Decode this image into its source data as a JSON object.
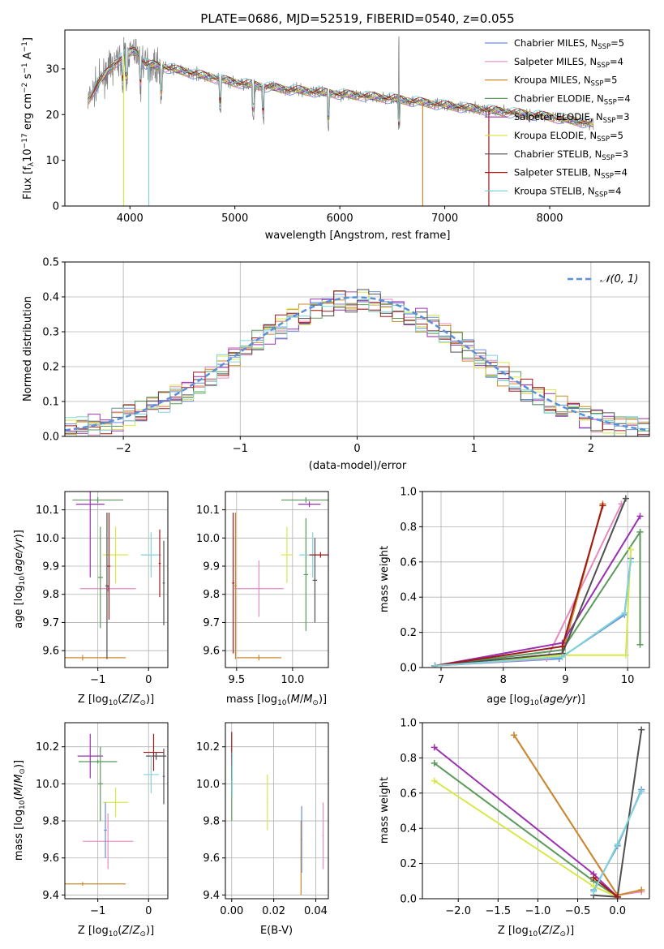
{
  "figure": {
    "title": "PLATE=0686, MJD=52519, FIBERID=0540, z=0.055"
  },
  "colors": {
    "Chabrier MILES": "#6a8ed6",
    "Salpeter MILES": "#e68ac0",
    "Kroupa MILES": "#c88a2a",
    "Chabrier ELODIE": "#5a9a5a",
    "Salpeter ELODIE": "#9b30b0",
    "Kroupa ELODIE": "#d8e84a",
    "Chabrier STELIB": "#505050",
    "Salpeter STELIB": "#a01818",
    "Kroupa STELIB": "#7fd4d8",
    "gauss": "#5b8fd6"
  },
  "legend_spectrum": [
    {
      "model": "Chabrier MILES",
      "prefix": "Chabrier MILES, N",
      "sub": "SSP",
      "suffix": "=5"
    },
    {
      "model": "Salpeter MILES",
      "prefix": "Salpeter MILES, N",
      "sub": "SSP",
      "suffix": "=4"
    },
    {
      "model": "Kroupa MILES",
      "prefix": "Kroupa MILES, N",
      "sub": "SSP",
      "suffix": "=5"
    },
    {
      "model": "Chabrier ELODIE",
      "prefix": "Chabrier ELODIE, N",
      "sub": "SSP",
      "suffix": "=4"
    },
    {
      "model": "Salpeter ELODIE",
      "prefix": "Salpeter ELODIE, N",
      "sub": "SSP",
      "suffix": "=3"
    },
    {
      "model": "Kroupa ELODIE",
      "prefix": "Kroupa ELODIE, N",
      "sub": "SSP",
      "suffix": "=5"
    },
    {
      "model": "Chabrier STELIB",
      "prefix": "Chabrier STELIB, N",
      "sub": "SSP",
      "suffix": "=3"
    },
    {
      "model": "Salpeter STELIB",
      "prefix": "Salpeter STELIB, N",
      "sub": "SSP",
      "suffix": "=4"
    },
    {
      "model": "Kroupa STELIB",
      "prefix": "Kroupa STELIB, N",
      "sub": "SSP",
      "suffix": "=4"
    }
  ],
  "legend_hist": {
    "label": "𝒩(0, 1)"
  },
  "chart_data": [
    {
      "id": "spectrum",
      "type": "line",
      "xlabel": "wavelength [Angstrom, rest frame]",
      "ylabel": "Flux [f_λ 10^-17 erg cm^-2 s^-1 A^-1]",
      "xlim": [
        3380,
        8950
      ],
      "ylim": [
        0,
        38.5
      ],
      "xticks": [
        4000,
        5000,
        6000,
        7000,
        8000
      ],
      "yticks": [
        0,
        10,
        20,
        30
      ],
      "continuum": [
        [
          3600,
          23
        ],
        [
          3700,
          27
        ],
        [
          3850,
          31
        ],
        [
          3950,
          33
        ],
        [
          4050,
          34
        ],
        [
          4150,
          31
        ],
        [
          4300,
          30.5
        ],
        [
          4600,
          29
        ],
        [
          5000,
          27
        ],
        [
          5500,
          25.5
        ],
        [
          6000,
          24.5
        ],
        [
          6500,
          23.5
        ],
        [
          7000,
          22
        ],
        [
          7400,
          21
        ],
        [
          8000,
          19.5
        ],
        [
          8400,
          18
        ]
      ],
      "lines": [
        3934,
        3969,
        4102,
        4300,
        4861,
        5175,
        5270,
        5890,
        6563
      ]
    },
    {
      "id": "residual-hist",
      "type": "bar",
      "xlabel": "(data-model)/error",
      "ylabel": "Normed distribution",
      "xlim": [
        -2.5,
        2.5
      ],
      "ylim": [
        0,
        0.5
      ],
      "xticks": [
        -2,
        -1,
        0,
        1,
        2
      ],
      "yticks": [
        0.0,
        0.1,
        0.2,
        0.3,
        0.4,
        0.5
      ],
      "series_name": "𝒩(0, 1)",
      "gauss": {
        "mean": 0,
        "sigma": 1
      }
    },
    {
      "id": "age-vs-Z",
      "type": "scatter",
      "xlabel": "Z [log10(Z/Z⊙)]",
      "ylabel": "age [log10(age/yr)]",
      "xlim": [
        -1.65,
        0.38
      ],
      "ylim": [
        9.54,
        10.165
      ],
      "xticks": [
        -1,
        0
      ],
      "yticks": [
        9.6,
        9.7,
        9.8,
        9.9,
        10.0,
        10.1
      ],
      "points": [
        {
          "model": "Kroupa MILES",
          "x": -1.3,
          "y": 9.575,
          "xerr": 0.85,
          "yerr": 0.01
        },
        {
          "model": "Salpeter MILES",
          "x": -0.8,
          "y": 9.82,
          "xerr": 0.55,
          "yerr": 0.01
        },
        {
          "model": "Chabrier ELODIE",
          "x": -1.0,
          "y": 10.135,
          "xerr": 0.5,
          "yerr": 0.01
        },
        {
          "model": "Salpeter ELODIE",
          "x": -1.15,
          "y": 10.12,
          "xerr": 0.28,
          "yerr": 0.26
        },
        {
          "model": "Kroupa ELODIE",
          "x": -0.65,
          "y": 9.94,
          "xerr": 0.25,
          "yerr": 0.1
        },
        {
          "model": "Chabrier ELODIE",
          "x": -0.95,
          "y": 9.86,
          "xerr": 0.05,
          "yerr": 0.18
        },
        {
          "model": "Chabrier STELIB",
          "x": -0.82,
          "y": 9.83,
          "xerr": 0.03,
          "yerr": 0.26
        },
        {
          "model": "Salpeter STELIB",
          "x": -0.78,
          "y": 9.9,
          "xerr": 0.03,
          "yerr": 0.19
        },
        {
          "model": "Kroupa STELIB",
          "x": 0.05,
          "y": 9.94,
          "xerr": 0.2,
          "yerr": 0.08
        },
        {
          "model": "Chabrier STELIB",
          "x": 0.3,
          "y": 9.84,
          "xerr": 0.02,
          "yerr": 0.15
        },
        {
          "model": "Salpeter STELIB",
          "x": 0.22,
          "y": 9.91,
          "xerr": 0.02,
          "yerr": 0.12
        }
      ]
    },
    {
      "id": "age-vs-mass",
      "type": "scatter",
      "xlabel": "mass [log10(M/M⊙)]",
      "ylabel": "",
      "xlim": [
        9.4,
        10.32
      ],
      "ylim": [
        9.54,
        10.165
      ],
      "xticks": [
        9.5,
        10.0
      ],
      "yticks": [
        9.6,
        9.7,
        9.8,
        9.9,
        10.0,
        10.1
      ],
      "points": [
        {
          "model": "Kroupa MILES",
          "x": 9.7,
          "y": 9.575,
          "xerr": 0.2,
          "yerr": 0.01
        },
        {
          "model": "Salpeter MILES",
          "x": 9.7,
          "y": 9.82,
          "xerr": 0.22,
          "yerr": 0.1
        },
        {
          "model": "Chabrier ELODIE",
          "x": 10.12,
          "y": 10.135,
          "xerr": 0.22,
          "yerr": 0.01
        },
        {
          "model": "Salpeter ELODIE",
          "x": 10.15,
          "y": 10.12,
          "xerr": 0.1,
          "yerr": 0.01
        },
        {
          "model": "Kroupa ELODIE",
          "x": 9.95,
          "y": 9.94,
          "xerr": 0.05,
          "yerr": 0.1
        },
        {
          "model": "Chabrier ELODIE",
          "x": 10.12,
          "y": 9.87,
          "xerr": 0.02,
          "yerr": 0.2
        },
        {
          "model": "Kroupa STELIB",
          "x": 10.18,
          "y": 9.94,
          "xerr": 0.12,
          "yerr": 0.08
        },
        {
          "model": "Chabrier STELIB",
          "x": 10.2,
          "y": 9.85,
          "xerr": 0.02,
          "yerr": 0.15
        },
        {
          "model": "Salpeter STELIB",
          "x": 10.25,
          "y": 9.94,
          "xerr": 0.1,
          "yerr": 0.01
        },
        {
          "model": "Salpeter STELIB",
          "x": 9.47,
          "y": 9.84,
          "xerr": 0.01,
          "yerr": 0.25
        },
        {
          "model": "Kroupa MILES",
          "x": 9.49,
          "y": 9.83,
          "xerr": 0.01,
          "yerr": 0.26
        }
      ]
    },
    {
      "id": "weight-vs-age",
      "type": "line",
      "xlabel": "age [log10(age/yr)]",
      "ylabel": "mass weight",
      "xlim": [
        6.7,
        10.35
      ],
      "ylim": [
        0,
        1.0
      ],
      "xticks": [
        7,
        8,
        9,
        10
      ],
      "yticks": [
        0.0,
        0.2,
        0.4,
        0.6,
        0.8,
        1.0
      ],
      "series": [
        {
          "model": "Chabrier MILES",
          "points": [
            [
              6.9,
              0.01
            ],
            [
              8.9,
              0.05
            ],
            [
              9.95,
              0.3
            ],
            [
              10.05,
              0.62
            ]
          ]
        },
        {
          "model": "Salpeter MILES",
          "points": [
            [
              6.9,
              0.01
            ],
            [
              8.7,
              0.05
            ],
            [
              9.9,
              0.93
            ]
          ]
        },
        {
          "model": "Kroupa MILES",
          "points": [
            [
              6.9,
              0.01
            ],
            [
              8.95,
              0.08
            ],
            [
              9.6,
              0.93
            ]
          ]
        },
        {
          "model": "Chabrier ELODIE",
          "points": [
            [
              6.9,
              0.01
            ],
            [
              8.95,
              0.1
            ],
            [
              10.2,
              0.77
            ],
            [
              10.2,
              0.13
            ]
          ]
        },
        {
          "model": "Salpeter ELODIE",
          "points": [
            [
              6.9,
              0.01
            ],
            [
              8.95,
              0.14
            ],
            [
              10.2,
              0.86
            ]
          ]
        },
        {
          "model": "Kroupa ELODIE",
          "points": [
            [
              6.9,
              0.01
            ],
            [
              8.95,
              0.07
            ],
            [
              9.97,
              0.07
            ],
            [
              10.05,
              0.67
            ]
          ]
        },
        {
          "model": "Chabrier STELIB",
          "points": [
            [
              6.9,
              0.01
            ],
            [
              8.95,
              0.08
            ],
            [
              9.97,
              0.96
            ]
          ]
        },
        {
          "model": "Salpeter STELIB",
          "points": [
            [
              6.9,
              0.01
            ],
            [
              8.95,
              0.12
            ],
            [
              9.6,
              0.92
            ]
          ]
        },
        {
          "model": "Kroupa STELIB",
          "points": [
            [
              6.9,
              0.01
            ],
            [
              8.95,
              0.06
            ],
            [
              9.95,
              0.31
            ],
            [
              10.05,
              0.6
            ]
          ]
        }
      ]
    },
    {
      "id": "mass-vs-Z",
      "type": "scatter",
      "xlabel": "Z [log10(Z/Z⊙)]",
      "ylabel": "mass [log10(M/M⊙)]",
      "xlim": [
        -1.65,
        0.38
      ],
      "ylim": [
        9.38,
        10.33
      ],
      "xticks": [
        -1,
        0
      ],
      "yticks": [
        9.4,
        9.6,
        9.8,
        10.0,
        10.2
      ],
      "points": [
        {
          "model": "Kroupa MILES",
          "x": -1.3,
          "y": 9.46,
          "xerr": 0.85,
          "yerr": 0.01
        },
        {
          "model": "Salpeter MILES",
          "x": -0.8,
          "y": 9.69,
          "xerr": 0.5,
          "yerr": 0.15
        },
        {
          "model": "Chabrier ELODIE",
          "x": -1.0,
          "y": 10.12,
          "xerr": 0.38,
          "yerr": 0.01
        },
        {
          "model": "Salpeter ELODIE",
          "x": -1.15,
          "y": 10.15,
          "xerr": 0.25,
          "yerr": 0.12
        },
        {
          "model": "Kroupa ELODIE",
          "x": -0.65,
          "y": 9.9,
          "xerr": 0.25,
          "yerr": 0.08
        },
        {
          "model": "Chabrier ELODIE",
          "x": -0.95,
          "y": 10.0,
          "xerr": 0.05,
          "yerr": 0.2
        },
        {
          "model": "Chabrier MILES",
          "x": -0.85,
          "y": 9.75,
          "xerr": 0.03,
          "yerr": 0.15
        },
        {
          "model": "Salpeter STELIB",
          "x": 0.1,
          "y": 10.17,
          "xerr": 0.2,
          "yerr": 0.1
        },
        {
          "model": "Chabrier STELIB",
          "x": 0.15,
          "y": 10.15,
          "xerr": 0.2,
          "yerr": 0.02
        },
        {
          "model": "Kroupa STELIB",
          "x": 0.05,
          "y": 10.05,
          "xerr": 0.15,
          "yerr": 0.1
        },
        {
          "model": "Chabrier STELIB",
          "x": 0.3,
          "y": 10.04,
          "xerr": 0.02,
          "yerr": 0.15
        }
      ]
    },
    {
      "id": "mass-vs-ebv",
      "type": "scatter",
      "xlabel": "E(B-V)",
      "ylabel": "",
      "xlim": [
        -0.003,
        0.046
      ],
      "ylim": [
        9.38,
        10.33
      ],
      "xticks": [
        0.0,
        0.02,
        0.04
      ],
      "yticks": [
        9.4,
        9.6,
        9.8,
        10.0,
        10.2
      ],
      "points": [
        {
          "model": "Salpeter STELIB",
          "x": 0.0,
          "y": 10.15,
          "xerr": 0.0003,
          "yerr": 0.13
        },
        {
          "model": "Chabrier ELODIE",
          "x": 0.0,
          "y": 9.95,
          "xerr": 0.0003,
          "yerr": 0.15
        },
        {
          "model": "Kroupa STELIB",
          "x": 0.0002,
          "y": 10.05,
          "xerr": 0.0003,
          "yerr": 0.12
        },
        {
          "model": "Kroupa ELODIE",
          "x": 0.017,
          "y": 9.9,
          "xerr": 0.0003,
          "yerr": 0.15
        },
        {
          "model": "Kroupa MILES",
          "x": 0.033,
          "y": 9.6,
          "xerr": 0.0003,
          "yerr": 0.2
        },
        {
          "model": "Chabrier MILES",
          "x": 0.0333,
          "y": 9.7,
          "xerr": 0.0003,
          "yerr": 0.18
        },
        {
          "model": "Salpeter MILES",
          "x": 0.0435,
          "y": 9.72,
          "xerr": 0.0003,
          "yerr": 0.18
        }
      ]
    },
    {
      "id": "weight-vs-Z",
      "type": "line",
      "xlabel": "Z [log10(Z/Z⊙)]",
      "ylabel": "mass weight",
      "xlim": [
        -2.45,
        0.4
      ],
      "ylim": [
        0,
        1.0
      ],
      "xticks": [
        -2.0,
        -1.5,
        -1.0,
        -0.5,
        0.0
      ],
      "yticks": [
        0.0,
        0.2,
        0.4,
        0.6,
        0.8,
        1.0
      ],
      "series": [
        {
          "model": "Chabrier MILES",
          "points": [
            [
              -0.3,
              0.05
            ],
            [
              0.0,
              0.3
            ],
            [
              0.3,
              0.62
            ]
          ]
        },
        {
          "model": "Salpeter MILES",
          "points": [
            [
              -1.3,
              0.93
            ],
            [
              0.0,
              0.02
            ],
            [
              0.3,
              0.04
            ]
          ]
        },
        {
          "model": "Kroupa MILES",
          "points": [
            [
              -1.3,
              0.93
            ],
            [
              0.0,
              0.02
            ],
            [
              0.3,
              0.05
            ]
          ]
        },
        {
          "model": "Chabrier ELODIE",
          "points": [
            [
              -2.3,
              0.77
            ],
            [
              -0.3,
              0.1
            ],
            [
              0.0,
              0.01
            ]
          ]
        },
        {
          "model": "Salpeter ELODIE",
          "points": [
            [
              -2.3,
              0.86
            ],
            [
              -0.3,
              0.14
            ],
            [
              0.0,
              0.01
            ]
          ]
        },
        {
          "model": "Kroupa ELODIE",
          "points": [
            [
              -2.3,
              0.67
            ],
            [
              -0.3,
              0.07
            ],
            [
              0.0,
              0.01
            ]
          ]
        },
        {
          "model": "Chabrier STELIB",
          "points": [
            [
              -0.3,
              0.02
            ],
            [
              0.0,
              0.01
            ],
            [
              0.3,
              0.96
            ]
          ]
        },
        {
          "model": "Salpeter STELIB",
          "points": [
            [
              -0.3,
              0.12
            ],
            [
              0.0,
              0.01
            ]
          ]
        },
        {
          "model": "Kroupa STELIB",
          "points": [
            [
              -0.3,
              0.04
            ],
            [
              0.0,
              0.31
            ],
            [
              0.3,
              0.61
            ]
          ]
        }
      ]
    }
  ]
}
